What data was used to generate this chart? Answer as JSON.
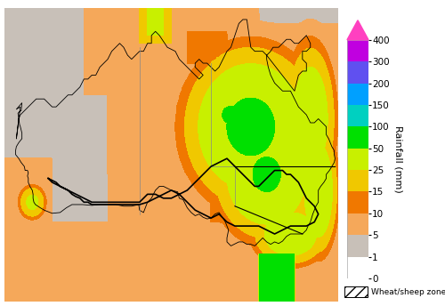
{
  "figsize": [
    5.0,
    3.44
  ],
  "dpi": 100,
  "colorbar_label": "Rainfall (mm)",
  "colorbar_levels": [
    0,
    1,
    5,
    10,
    15,
    25,
    50,
    100,
    150,
    200,
    300,
    400
  ],
  "colorbar_colors": [
    "#ffffff",
    "#c8c0b8",
    "#f5a85a",
    "#f07800",
    "#f0c800",
    "#c8f000",
    "#00e000",
    "#00d0c0",
    "#00a0ff",
    "#6050f0",
    "#c000e0",
    "#ff40c0"
  ],
  "triangle_color": "#ff40c0",
  "wheat_sheep_label": "Wheat/sheep zone",
  "background_color": "#ffffff"
}
